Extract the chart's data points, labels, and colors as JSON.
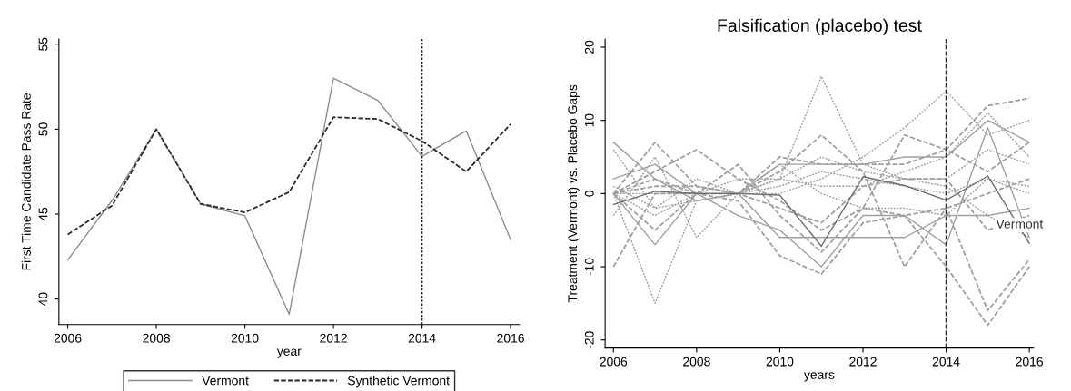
{
  "chart_data": [
    {
      "type": "line",
      "xlabel": "year",
      "ylabel": "First Time Candidate Pass Rate",
      "x": [
        2006,
        2007,
        2008,
        2009,
        2010,
        2011,
        2012,
        2013,
        2014,
        2015,
        2016
      ],
      "series": [
        {
          "name": "Vermont",
          "color": "#8c8c8c",
          "line_style": "solid",
          "values": [
            42.3,
            45.8,
            50.0,
            45.6,
            44.9,
            39.1,
            53.0,
            51.7,
            48.4,
            49.9,
            43.5
          ]
        },
        {
          "name": "Synthetic Vermont",
          "color": "#2b2b2b",
          "line_style": "dashed",
          "values": [
            43.8,
            45.5,
            50.0,
            45.6,
            45.1,
            46.3,
            50.7,
            50.6,
            49.3,
            47.5,
            50.3
          ]
        }
      ],
      "xlim": [
        2005.8,
        2016.2
      ],
      "xticks": [
        2006,
        2008,
        2010,
        2012,
        2014,
        2016
      ],
      "ylim": [
        38.5,
        55.3
      ],
      "yticks": [
        40,
        45,
        50,
        55
      ],
      "ref_lines": [
        {
          "axis": "x",
          "value": 2014,
          "color": "#2b2b2b",
          "line_style": "dotted"
        }
      ],
      "legend": "bottom"
    },
    {
      "type": "line",
      "title": "Falsification (placebo) test",
      "xlabel": "years",
      "ylabel": "Treatment (Vermont) vs. Placebo Gaps",
      "x": [
        2006,
        2007,
        2008,
        2009,
        2010,
        2011,
        2012,
        2013,
        2014,
        2015,
        2016
      ],
      "series": [
        {
          "color": "#a0a0a0",
          "line_style": "dotted",
          "values": [
            6,
            -2,
            -1,
            0,
            2,
            16,
            4,
            2,
            1,
            -3,
            -6
          ]
        },
        {
          "color": "#a0a0a0",
          "line_style": "dotted",
          "values": [
            0,
            -15,
            -1,
            0,
            1,
            3,
            2,
            1,
            0,
            2,
            1
          ]
        },
        {
          "color": "#a0a0a0",
          "line_style": "dashed",
          "values": [
            -10,
            0,
            0,
            -1,
            -8.5,
            -11,
            -4,
            -3,
            -2,
            0,
            2
          ]
        },
        {
          "color": "#a0a0a0",
          "line_style": "dotted",
          "values": [
            0,
            0,
            0,
            0,
            0,
            2,
            5,
            9,
            14,
            8,
            10
          ]
        },
        {
          "color": "#a0a0a0",
          "line_style": "dashed",
          "values": [
            0,
            2,
            0,
            0,
            3,
            8,
            3,
            -10,
            -2,
            -16,
            -9
          ]
        },
        {
          "color": "#a0a0a0",
          "line_style": "dashed",
          "values": [
            0,
            3,
            6,
            2,
            -1,
            -5,
            -2,
            -3,
            -10,
            -18,
            -10
          ]
        },
        {
          "color": "#a0a0a0",
          "line_style": "dashed",
          "values": [
            0,
            7,
            1,
            0,
            5,
            4,
            4,
            4,
            6,
            12,
            13
          ]
        },
        {
          "color": "#a0a0a0",
          "line_style": "solid",
          "values": [
            7,
            2,
            -1,
            0,
            4,
            4,
            4,
            5,
            5,
            10,
            7
          ]
        },
        {
          "color": "#a0a0a0",
          "line_style": "dashed",
          "values": [
            0,
            -5,
            0,
            4,
            -3,
            -8,
            -2,
            8,
            6,
            3,
            7
          ]
        },
        {
          "color": "#a0a0a0",
          "line_style": "solid",
          "values": [
            0,
            -7,
            0,
            -3,
            -5,
            -10,
            -3,
            -3,
            -7,
            9,
            -6
          ]
        },
        {
          "color": "#a0a0a0",
          "line_style": "dotted",
          "values": [
            -3,
            5,
            -6,
            0,
            2,
            5,
            3,
            2,
            2,
            6,
            4
          ]
        },
        {
          "color": "#a0a0a0",
          "line_style": "solid",
          "values": [
            2,
            4,
            0,
            0,
            -6,
            -6,
            -6,
            -6,
            -3,
            -3,
            -2
          ]
        },
        {
          "color": "#a0a0a0",
          "line_style": "dotted",
          "values": [
            0,
            -3,
            0,
            2,
            2,
            1,
            1,
            3,
            5,
            11,
            5
          ]
        },
        {
          "color": "#a0a0a0",
          "line_style": "dashed",
          "values": [
            0,
            1,
            1,
            0,
            -2,
            -4,
            1,
            2,
            2,
            -5,
            -3
          ]
        },
        {
          "color": "#a0a0a0",
          "line_style": "dotted",
          "values": [
            1,
            -2,
            2,
            0,
            4,
            0,
            -2,
            -2,
            -3,
            2,
            0
          ]
        },
        {
          "color": "#6e6e6e",
          "line_style": "solid",
          "values": [
            -1.5,
            0.3,
            0,
            0,
            -0.2,
            -7.2,
            2.3,
            1.1,
            -0.9,
            2.4,
            -6.8
          ]
        }
      ],
      "xlim": [
        2005.8,
        2016.1
      ],
      "xticks": [
        2006,
        2008,
        2010,
        2012,
        2014,
        2016
      ],
      "ylim": [
        -21.1,
        21.1
      ],
      "yticks": [
        -20,
        -10,
        0,
        10,
        20
      ],
      "ref_lines": [
        {
          "axis": "x",
          "value": 2014,
          "color": "#2b2b2b",
          "line_style": "dashed"
        }
      ],
      "annotations": [
        {
          "text": "Vermont",
          "x": 2015.2,
          "y": -4.3
        }
      ]
    }
  ]
}
